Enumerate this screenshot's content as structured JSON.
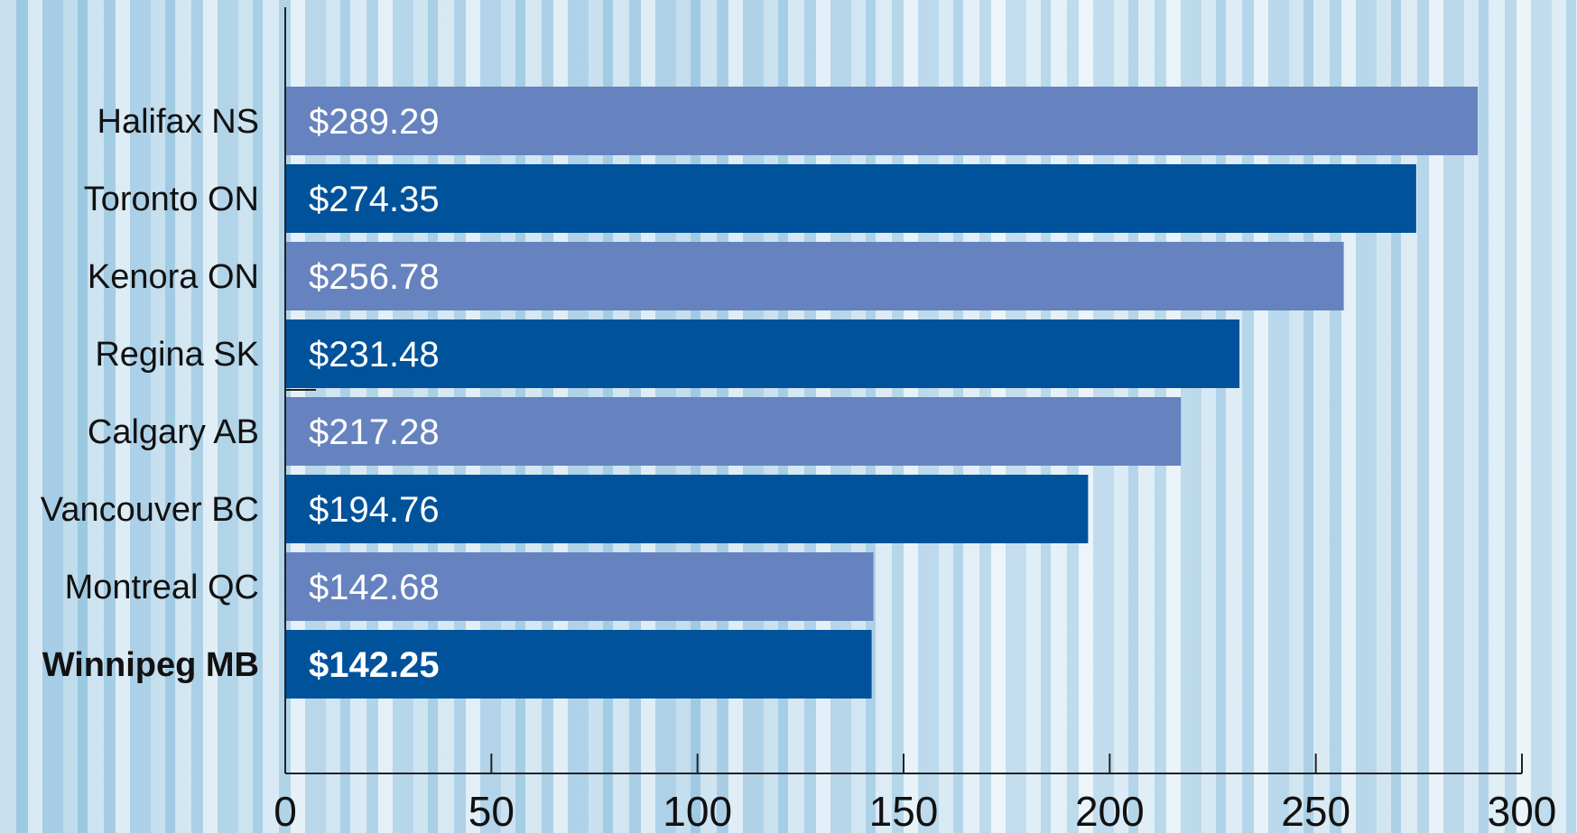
{
  "chart_data": {
    "type": "bar",
    "orientation": "horizontal",
    "categories": [
      "Halifax NS",
      "Toronto ON",
      "Kenora ON",
      "Regina SK",
      "Calgary AB",
      "Vancouver BC",
      "Montreal QC",
      "Winnipeg MB"
    ],
    "values": [
      289.29,
      274.35,
      256.78,
      231.48,
      217.28,
      194.76,
      142.68,
      142.25
    ],
    "value_labels": [
      "$289.29",
      "$274.35",
      "$256.78",
      "$231.48",
      "$217.28",
      "$194.76",
      "$142.68",
      "$142.25"
    ],
    "highlighted_category": "Winnipeg MB",
    "xlim": [
      0,
      300
    ],
    "x_ticks": [
      0,
      50,
      100,
      150,
      200,
      250,
      300
    ],
    "x_tick_labels": [
      "0",
      "50",
      "100",
      "150",
      "200",
      "250",
      "300"
    ],
    "grid": false,
    "colors": {
      "bar_alternate_light": "#6683bf",
      "bar_alternate_dark": "#00529b",
      "bar_text": "#ffffff",
      "axis": "#222222"
    }
  }
}
